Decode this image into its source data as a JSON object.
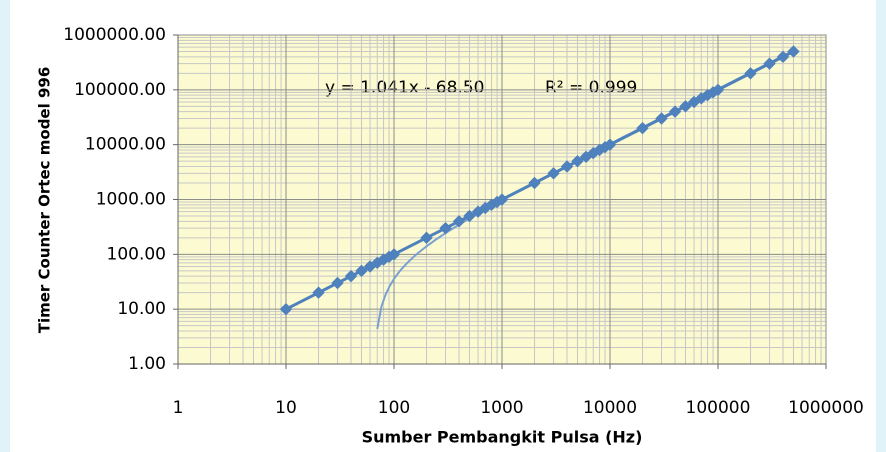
{
  "chart_data": {
    "type": "scatter",
    "x_label": "Sumber Pembangkit Pulsa (Hz)",
    "y_label": "Timer Counter Ortec model 996",
    "annotations": [
      "y = 1.041x - 68.50",
      "R² = 0.999"
    ],
    "trendline": {
      "slope": 1.041,
      "intercept": -68.5
    },
    "series": [
      {
        "color": "#4f81bd",
        "x": [
          10,
          20,
          30,
          40,
          50,
          60,
          70,
          80,
          90,
          100,
          200,
          300,
          400,
          500,
          600,
          700,
          800,
          900,
          1000,
          2000,
          3000,
          4000,
          5000,
          6000,
          7000,
          8000,
          9000,
          10000,
          20000,
          30000,
          40000,
          50000,
          60000,
          70000,
          80000,
          90000,
          100000,
          200000,
          300000,
          400000,
          500000
        ],
        "values": [
          10,
          20,
          30,
          40,
          50,
          60,
          70,
          80,
          90,
          100,
          200,
          300,
          400,
          500,
          600,
          700,
          800,
          900,
          1000,
          2000,
          3000,
          4000,
          5000,
          6000,
          7000,
          8000,
          9000,
          10000,
          20000,
          30000,
          40000,
          50000,
          60000,
          70000,
          80000,
          90000,
          100000,
          200000,
          300000,
          400000,
          500000
        ]
      }
    ],
    "log_x": true,
    "log_y": true,
    "grid": true,
    "xlim": [
      1,
      1000000
    ],
    "xticks": [
      1,
      10,
      100,
      1000,
      10000,
      100000,
      1000000
    ],
    "ylim": [
      1,
      1000000
    ],
    "yticks": [
      {
        "value": 1,
        "label": "1.00"
      },
      {
        "value": 10,
        "label": "10.00"
      },
      {
        "value": 100,
        "label": "100.00"
      },
      {
        "value": 1000,
        "label": "1000.00"
      },
      {
        "value": 10000,
        "label": "10000.00"
      },
      {
        "value": 100000,
        "label": "100000.00"
      },
      {
        "value": 1000000,
        "label": "1000000.00"
      }
    ]
  }
}
